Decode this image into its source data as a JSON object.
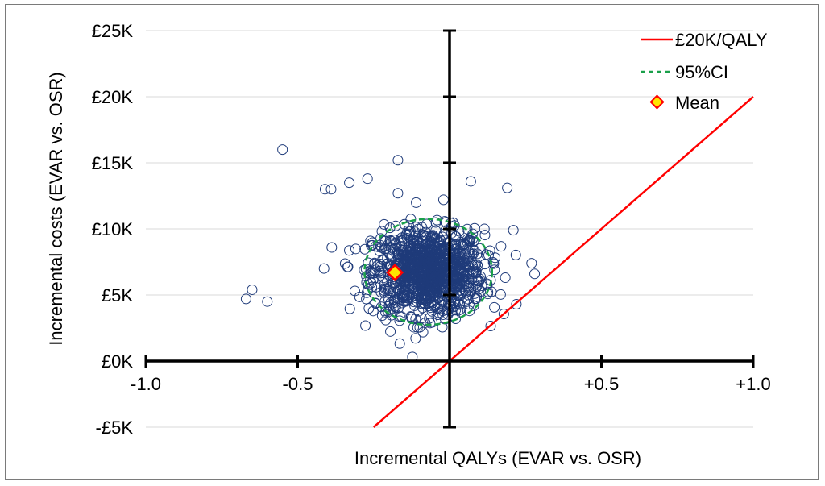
{
  "chart_data": {
    "type": "scatter",
    "xlabel": "Incremental QALYs (EVAR vs. OSR)",
    "ylabel": "Incremental costs (EVAR vs. OSR)",
    "xlim": [
      -1.0,
      1.0
    ],
    "ylim": [
      -5,
      25
    ],
    "x_tick_values": [
      -1.0,
      -0.5,
      0.5,
      1.0
    ],
    "x_tick_labels": [
      "-1.0",
      "-0.5",
      "+0.5",
      "+1.0"
    ],
    "y_tick_values": [
      -5,
      0,
      5,
      10,
      15,
      20,
      25
    ],
    "y_tick_labels": [
      "-£5K",
      "£0K",
      "£5K",
      "£10K",
      "£15K",
      "£20K",
      "£25K"
    ],
    "grid": "horizontal",
    "legend_position": "top-right",
    "colors": {
      "wtp_line": "#ff0000",
      "ci_ellipse": "#1aa04a",
      "points": "#1f3b7a",
      "mean_fill": "#ffe600",
      "mean_edge": "#ff0000",
      "axes": "#000000",
      "grid": "#d9d9d9"
    },
    "series": [
      {
        "name": "£20K/QALY",
        "kind": "line",
        "slope_per_qaly": 20,
        "points": [
          [
            -0.25,
            -5
          ],
          [
            1.0,
            20
          ]
        ]
      },
      {
        "name": "95%CI",
        "kind": "ellipse",
        "center": [
          -0.07,
          6.75
        ],
        "semi_axis_x": 0.21,
        "semi_axis_y": 4.0
      },
      {
        "name": "Mean",
        "kind": "point",
        "x": -0.18,
        "y": 6.7
      }
    ],
    "simulation_points": {
      "count": 1100,
      "outliers": [
        [
          -0.55,
          16.0
        ],
        [
          -0.17,
          15.2
        ],
        [
          -0.33,
          13.5
        ],
        [
          -0.27,
          13.8
        ],
        [
          -0.41,
          13.0
        ],
        [
          -0.39,
          13.0
        ],
        [
          0.07,
          13.6
        ],
        [
          0.19,
          13.1
        ],
        [
          -0.17,
          12.7
        ],
        [
          -0.02,
          12.2
        ],
        [
          -0.65,
          5.4
        ],
        [
          -0.67,
          4.7
        ],
        [
          -0.6,
          4.5
        ],
        [
          0.28,
          6.6
        ],
        [
          0.27,
          7.4
        ],
        [
          0.21,
          9.9
        ],
        [
          0.22,
          4.3
        ],
        [
          0.02,
          3.2
        ],
        [
          -0.08,
          2.9
        ],
        [
          -0.21,
          3.1
        ]
      ]
    }
  }
}
